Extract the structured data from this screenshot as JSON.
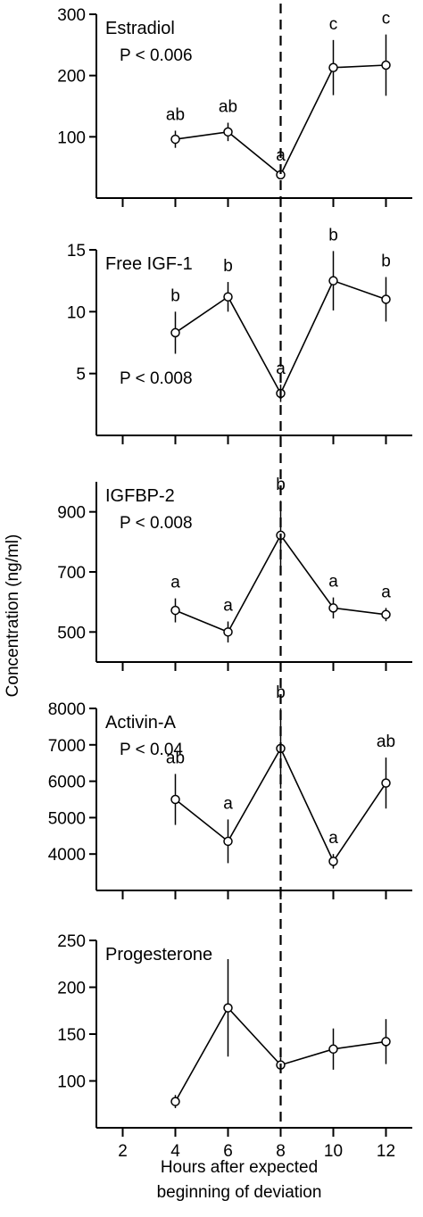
{
  "chart_data": {
    "type": "line",
    "x": [
      4,
      6,
      8,
      10,
      12
    ],
    "x_ticks": [
      2,
      4,
      6,
      8,
      10,
      12
    ],
    "x_range": [
      1,
      13
    ],
    "xlabel": [
      "Hours after expected",
      "beginning of deviation"
    ],
    "ylabel": "Concentration (ng/ml)",
    "reference_line": {
      "x": 8,
      "style": "dashed"
    },
    "panels": [
      {
        "name": "Estradiol",
        "pvalue": "P < 0.006",
        "y": [
          96,
          108,
          38,
          213,
          217
        ],
        "err": [
          14,
          15,
          6,
          45,
          50
        ],
        "letters": [
          "ab",
          "ab",
          "a",
          "c",
          "c"
        ],
        "ylim": [
          0,
          300
        ],
        "yticks": [
          100,
          200,
          300
        ]
      },
      {
        "name": "Free IGF-1",
        "pvalue": "P < 0.008",
        "y": [
          8.3,
          11.2,
          3.4,
          12.5,
          11.0
        ],
        "err": [
          1.7,
          1.2,
          0.7,
          2.4,
          1.8
        ],
        "letters": [
          "b",
          "b",
          "a",
          "b",
          "b"
        ],
        "ylim": [
          0,
          15
        ],
        "yticks": [
          5,
          10,
          15
        ]
      },
      {
        "name": "IGFBP-2",
        "pvalue": "P < 0.008",
        "y": [
          572,
          500,
          822,
          580,
          558
        ],
        "err": [
          40,
          35,
          115,
          35,
          22
        ],
        "letters": [
          "a",
          "a",
          "b",
          "a",
          "a"
        ],
        "ylim": [
          400,
          1000
        ],
        "yticks": [
          500,
          700,
          900
        ]
      },
      {
        "name": "Activin-A",
        "pvalue": "P < 0.04",
        "y": [
          5500,
          4350,
          6900,
          3800,
          5950
        ],
        "err": [
          700,
          600,
          1100,
          200,
          700
        ],
        "letters": [
          "ab",
          "a",
          "b",
          "a",
          "ab"
        ],
        "ylim": [
          3000,
          8000
        ],
        "yticks": [
          4000,
          5000,
          6000,
          7000,
          8000
        ]
      },
      {
        "name": "Progesterone",
        "pvalue": "",
        "y": [
          78,
          178,
          117,
          134,
          142
        ],
        "err": [
          7,
          52,
          8,
          22,
          24
        ],
        "letters": [
          "",
          "",
          "",
          "",
          ""
        ],
        "ylim": [
          50,
          250
        ],
        "yticks": [
          100,
          150,
          200,
          250
        ]
      }
    ]
  }
}
